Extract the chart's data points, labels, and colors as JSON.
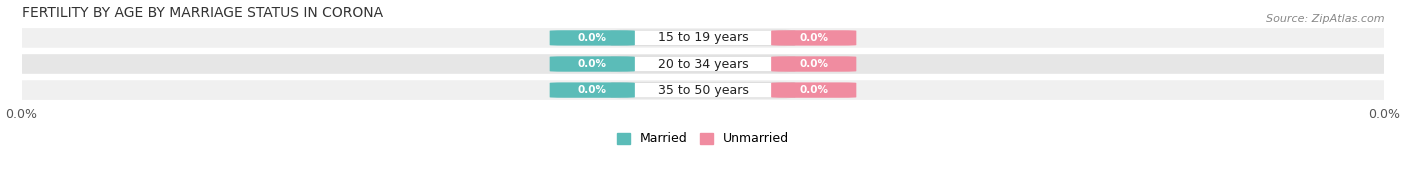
{
  "title": "FERTILITY BY AGE BY MARRIAGE STATUS IN CORONA",
  "source": "Source: ZipAtlas.com",
  "categories": [
    "15 to 19 years",
    "20 to 34 years",
    "35 to 50 years"
  ],
  "married_values": [
    0.0,
    0.0,
    0.0
  ],
  "unmarried_values": [
    0.0,
    0.0,
    0.0
  ],
  "married_color": "#5bbcb8",
  "unmarried_color": "#f08ca0",
  "row_bg_light": "#f0f0f0",
  "row_bg_dark": "#e6e6e6",
  "title_fontsize": 10,
  "source_fontsize": 8,
  "label_fontsize": 9,
  "tick_fontsize": 9,
  "legend_fontsize": 9,
  "axis_label_left": "0.0%",
  "axis_label_right": "0.0%"
}
